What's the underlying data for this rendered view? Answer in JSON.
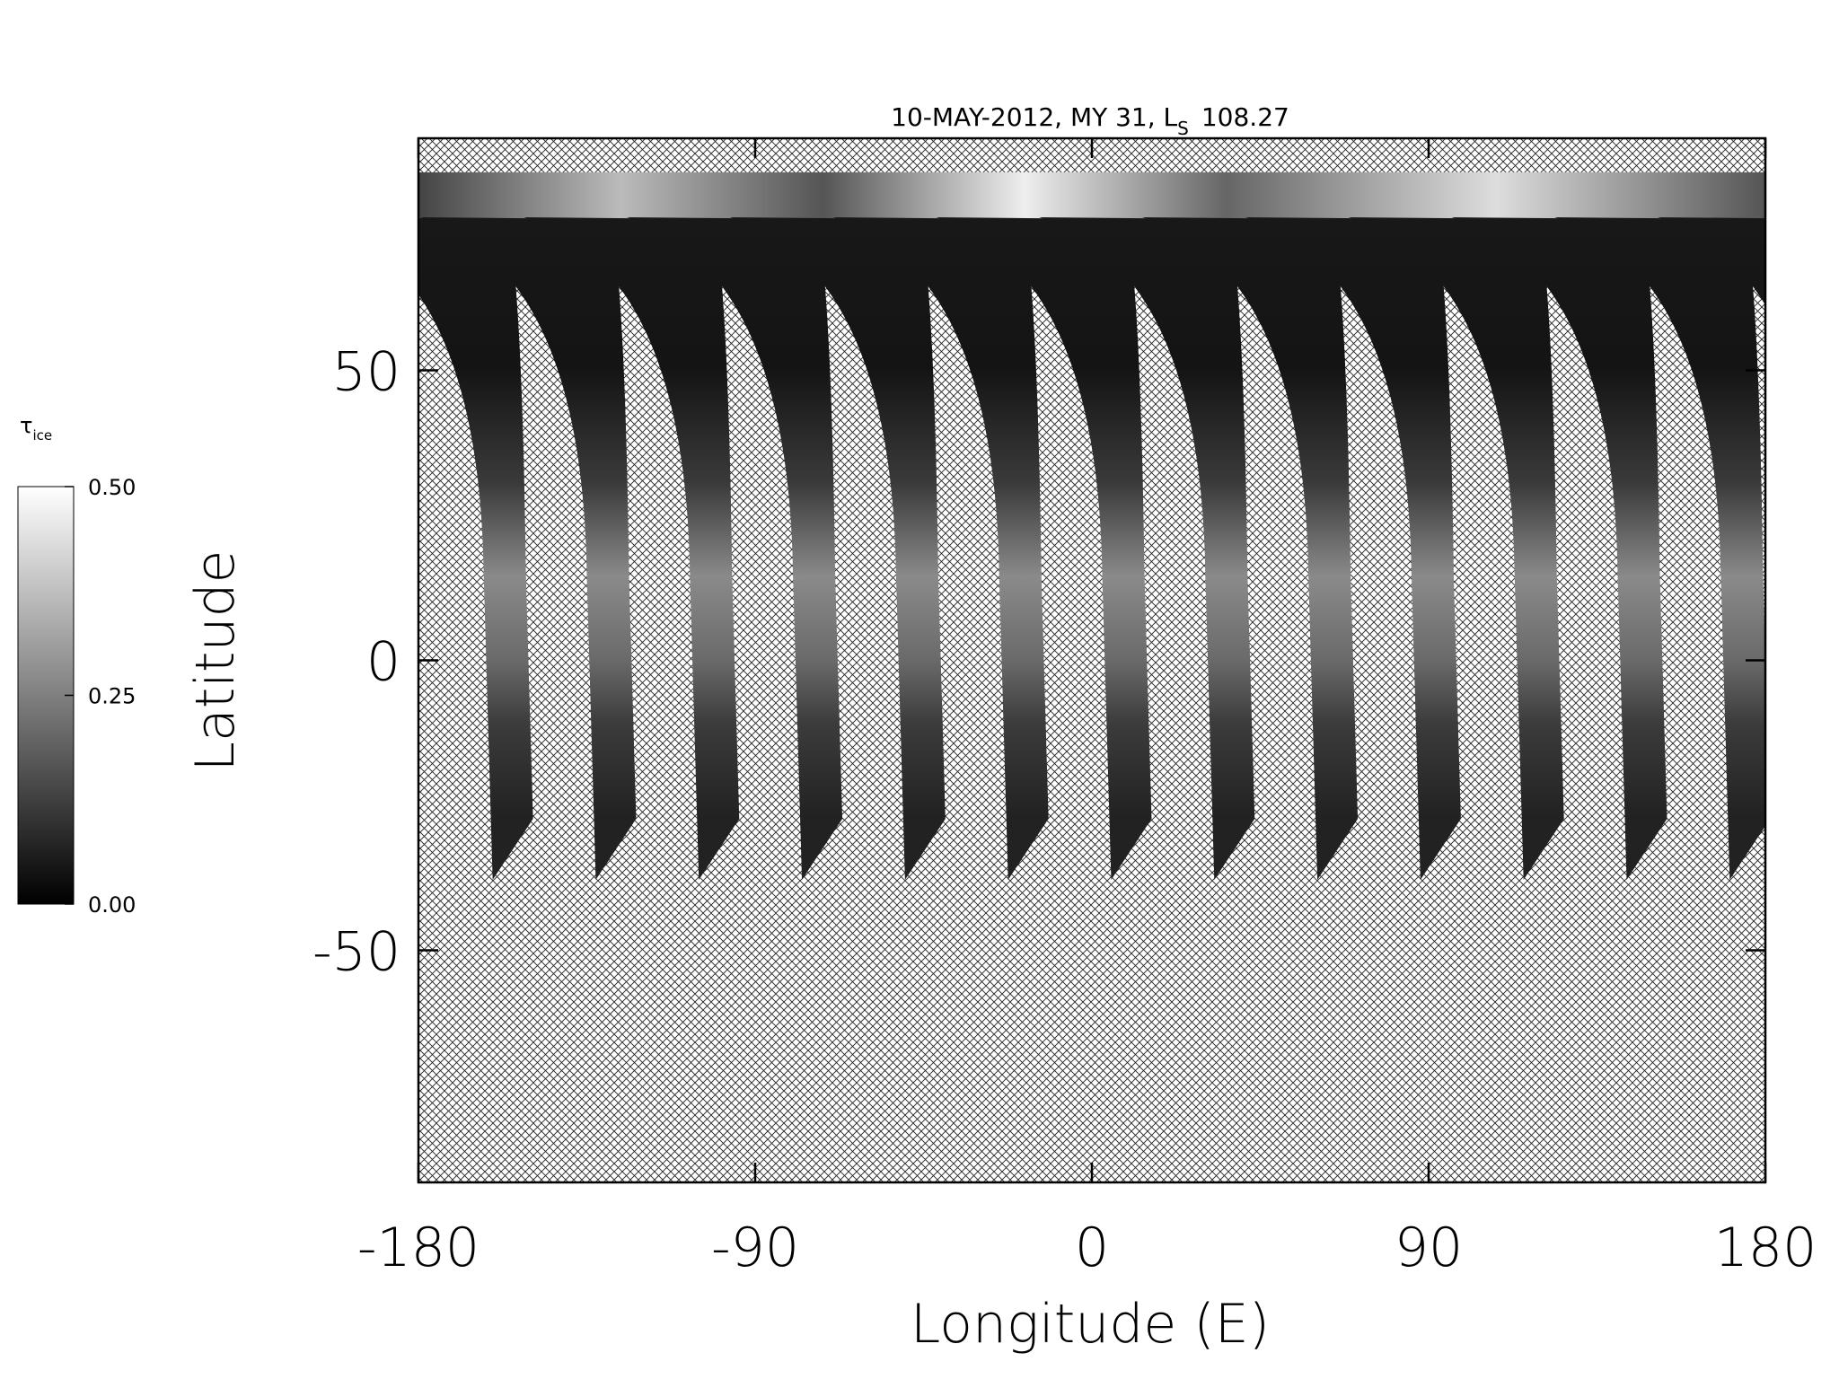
{
  "chart_data": {
    "type": "map",
    "title": "10-MAY-2012, MY 31,  L",
    "title_subscript": "S",
    "title_value": "108.27",
    "x_label": "Longitude (E)",
    "y_label": "Latitude",
    "xlim": [
      -180,
      180
    ],
    "xticks": [
      -180,
      -90,
      0,
      90,
      180
    ],
    "ylim": [
      -90,
      90
    ],
    "yticks": [
      -50,
      0,
      50
    ],
    "colorbar": {
      "label": "τ",
      "label_subscript": "ice",
      "lim": [
        0,
        0.5
      ],
      "ticks": [
        {
          "value": 0,
          "label": "0.00"
        },
        {
          "value": 0.25,
          "label": "0.25"
        },
        {
          "value": 0.5,
          "label": "0.50"
        }
      ],
      "colors": [
        "#000000",
        "#ffffff"
      ]
    }
  }
}
